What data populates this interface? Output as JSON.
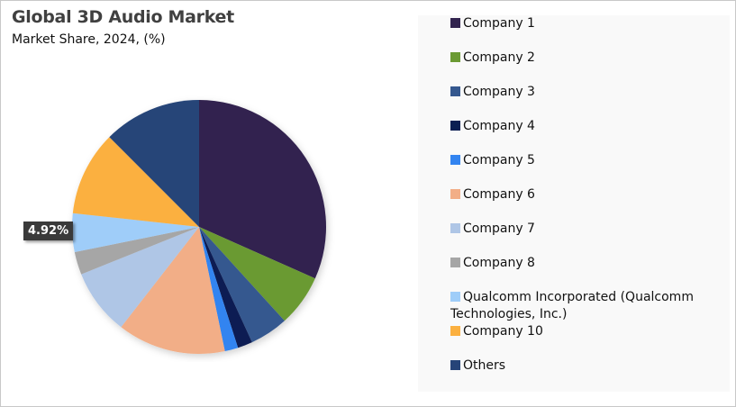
{
  "header": {
    "title": "Global 3D Audio Market",
    "subtitle": "Market Share, 2024, (%)"
  },
  "tooltip": {
    "label": "4.92%"
  },
  "legend": {
    "items": [
      {
        "label": "Company 1",
        "color": "#32244f"
      },
      {
        "label": "Company 2",
        "color": "#6b9a33"
      },
      {
        "label": "Company 3",
        "color": "#35588f"
      },
      {
        "label": "Company 4",
        "color": "#0b1f52"
      },
      {
        "label": "Company 5",
        "color": "#3384f0"
      },
      {
        "label": "Company 6",
        "color": "#f2ae87"
      },
      {
        "label": "Company 7",
        "color": "#afc6e6"
      },
      {
        "label": "Company 8",
        "color": "#a6a6a6"
      },
      {
        "label": "Qualcomm Incorporated (Qualcomm Technologies, Inc.)",
        "color": "#9fcdf9"
      },
      {
        "label": "Company 10",
        "color": "#fbb040"
      },
      {
        "label": "Others",
        "color": "#264478"
      }
    ]
  },
  "chart_data": {
    "type": "pie",
    "title": "Global 3D Audio Market",
    "subtitle": "Market Share, 2024, (%)",
    "categories": [
      "Company 1",
      "Company 2",
      "Company 3",
      "Company 4",
      "Company 5",
      "Company 6",
      "Company 7",
      "Company 8",
      "Qualcomm Incorporated (Qualcomm Technologies, Inc.)",
      "Company 10",
      "Others"
    ],
    "values": [
      31.7,
      6.6,
      4.9,
      1.9,
      1.7,
      13.8,
      8.4,
      2.9,
      4.92,
      10.8,
      12.5
    ],
    "annotations": [
      "4.92%"
    ],
    "legend_position": "right"
  }
}
